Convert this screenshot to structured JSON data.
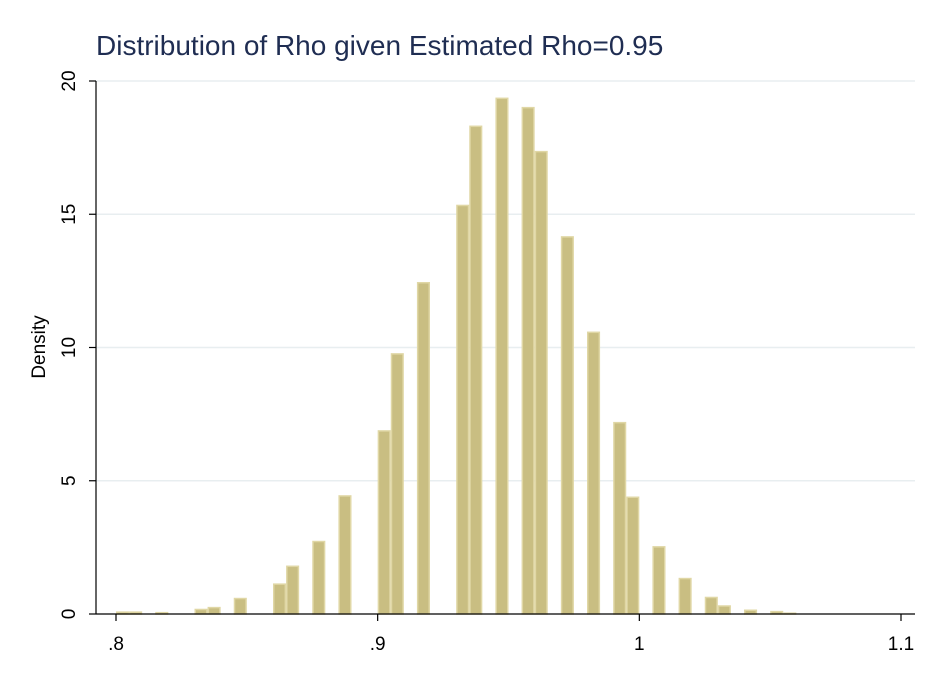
{
  "chart_data": {
    "type": "bar",
    "title": "Distribution of Rho given Estimated Rho=0.95",
    "xlabel": "",
    "ylabel": "Density",
    "xlim": [
      0.8,
      1.1
    ],
    "ylim": [
      0,
      20
    ],
    "x_ticks": [
      0.8,
      0.9,
      1.0,
      1.1
    ],
    "x_tick_labels": [
      ".8",
      ".9",
      "1",
      "1.1"
    ],
    "y_ticks": [
      0,
      5,
      10,
      15,
      20
    ],
    "y_tick_labels": [
      "0",
      "5",
      "10",
      "15",
      "20"
    ],
    "grid": "horizontal",
    "bin_width": 0.005,
    "colors": {
      "bar_fill": "#c9be82",
      "bar_edge": "#e0d7a5",
      "title": "#1f2d52"
    },
    "x": [
      0.8,
      0.805,
      0.815,
      0.83,
      0.835,
      0.845,
      0.86,
      0.865,
      0.875,
      0.885,
      0.9,
      0.905,
      0.915,
      0.93,
      0.935,
      0.945,
      0.955,
      0.96,
      0.97,
      0.98,
      0.99,
      0.995,
      1.005,
      1.015,
      1.025,
      1.03,
      1.04,
      1.05,
      1.055
    ],
    "values": [
      0.07,
      0.07,
      0.05,
      0.17,
      0.24,
      0.58,
      1.12,
      1.79,
      2.72,
      4.43,
      6.87,
      9.76,
      12.43,
      15.33,
      18.3,
      19.35,
      19.0,
      17.35,
      14.15,
      10.57,
      7.18,
      4.38,
      2.52,
      1.33,
      0.62,
      0.3,
      0.14,
      0.09,
      0.03
    ]
  }
}
